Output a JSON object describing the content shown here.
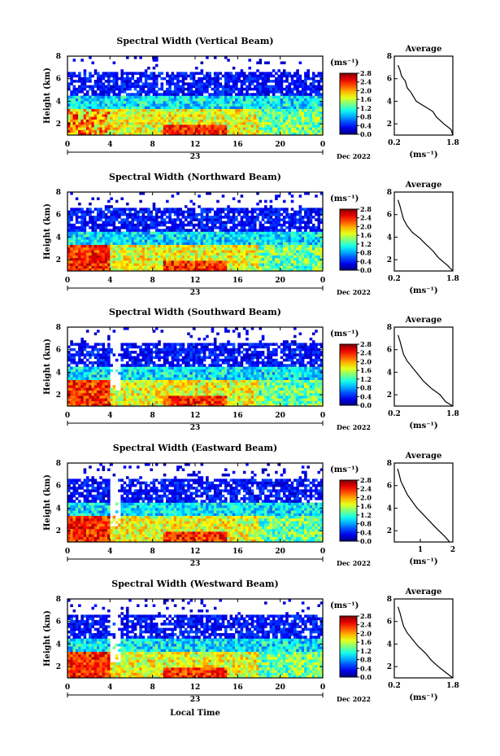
{
  "x_axis_title": "Local Time",
  "chart_data": [
    {
      "type": "heatmap",
      "title": "Spectral Width (Vertical Beam)",
      "ylabel": "Height (km)",
      "x_ticks": [
        "0",
        "4",
        "8",
        "12",
        "16",
        "20",
        "0"
      ],
      "y_ticks": [
        "2",
        "4",
        "6",
        "8"
      ],
      "day_label": "23",
      "date_label": "Dec 2022",
      "xlim": [
        0,
        24
      ],
      "ylim": [
        1,
        8
      ],
      "colorbar": {
        "unit": "(ms⁻¹)",
        "ticks": [
          "2.8",
          "2.4",
          "2.0",
          "1.6",
          "1.2",
          "0.8",
          "0.4",
          "0.0"
        ],
        "range": [
          0,
          2.8
        ]
      },
      "average": {
        "title": "Average",
        "xlabel": "(ms⁻¹)",
        "x_ticks": [
          "0.2",
          "1.8"
        ],
        "xlim": [
          0.2,
          1.8
        ],
        "y_ticks": [
          "2",
          "4",
          "6",
          "8"
        ],
        "profile": [
          [
            1.8,
            1
          ],
          [
            1.75,
            1.5
          ],
          [
            1.55,
            2
          ],
          [
            1.35,
            2.6
          ],
          [
            1.25,
            3.1
          ],
          [
            1.0,
            3.6
          ],
          [
            0.8,
            4.0
          ],
          [
            0.65,
            4.8
          ],
          [
            0.55,
            5.2
          ],
          [
            0.5,
            5.8
          ],
          [
            0.4,
            6.2
          ],
          [
            0.35,
            6.8
          ],
          [
            0.3,
            7.2
          ]
        ]
      }
    },
    {
      "type": "heatmap",
      "title": "Spectral Width (Northward Beam)",
      "ylabel": "Height (km)",
      "x_ticks": [
        "0",
        "4",
        "8",
        "12",
        "16",
        "20",
        "0"
      ],
      "y_ticks": [
        "2",
        "4",
        "6",
        "8"
      ],
      "day_label": "23",
      "date_label": "Dec 2022",
      "xlim": [
        0,
        24
      ],
      "ylim": [
        1,
        8
      ],
      "colorbar": {
        "unit": "(ms⁻¹)",
        "ticks": [
          "2.8",
          "2.4",
          "2.0",
          "1.6",
          "1.2",
          "0.8",
          "0.4",
          "0.0"
        ],
        "range": [
          0,
          2.8
        ]
      },
      "average": {
        "title": "Average",
        "xlabel": "(ms⁻¹)",
        "x_ticks": [
          "0.2",
          "1.8"
        ],
        "xlim": [
          0.2,
          1.8
        ],
        "y_ticks": [
          "2",
          "4",
          "6",
          "8"
        ],
        "profile": [
          [
            1.8,
            1
          ],
          [
            1.65,
            1.5
          ],
          [
            1.4,
            2.2
          ],
          [
            1.25,
            2.8
          ],
          [
            1.05,
            3.4
          ],
          [
            0.9,
            3.9
          ],
          [
            0.7,
            4.4
          ],
          [
            0.55,
            5.0
          ],
          [
            0.45,
            5.6
          ],
          [
            0.4,
            6.2
          ],
          [
            0.35,
            6.8
          ],
          [
            0.3,
            7.3
          ]
        ]
      }
    },
    {
      "type": "heatmap",
      "title": "Spectral Width (Southward Beam)",
      "ylabel": "Height (km)",
      "x_ticks": [
        "0",
        "4",
        "8",
        "12",
        "16",
        "20",
        "0"
      ],
      "y_ticks": [
        "2",
        "4",
        "6",
        "8"
      ],
      "day_label": "23",
      "date_label": "Dec 2022",
      "xlim": [
        0,
        24
      ],
      "ylim": [
        1,
        8
      ],
      "colorbar": {
        "unit": "(ms⁻¹)",
        "ticks": [
          "2.8",
          "2.4",
          "2.0",
          "1.6",
          "1.2",
          "0.8",
          "0.4",
          "0.0"
        ],
        "range": [
          0,
          2.8
        ]
      },
      "average": {
        "title": "Average",
        "xlabel": "(ms⁻¹)",
        "x_ticks": [
          "0.2",
          "1.8"
        ],
        "xlim": [
          0.2,
          1.8
        ],
        "y_ticks": [
          "2",
          "4",
          "6",
          "8"
        ],
        "profile": [
          [
            1.8,
            1
          ],
          [
            1.6,
            1.4
          ],
          [
            1.45,
            2.0
          ],
          [
            1.2,
            2.6
          ],
          [
            1.0,
            3.2
          ],
          [
            0.85,
            3.8
          ],
          [
            0.7,
            4.4
          ],
          [
            0.55,
            5.0
          ],
          [
            0.45,
            5.6
          ],
          [
            0.4,
            6.2
          ],
          [
            0.35,
            6.8
          ],
          [
            0.3,
            7.3
          ]
        ]
      }
    },
    {
      "type": "heatmap",
      "title": "Spectral Width (Eastward Beam)",
      "ylabel": "Height (km)",
      "x_ticks": [
        "0",
        "4",
        "8",
        "12",
        "16",
        "20",
        "0"
      ],
      "y_ticks": [
        "2",
        "4",
        "6",
        "8"
      ],
      "day_label": "23",
      "date_label": "Dec 2022",
      "xlim": [
        0,
        24
      ],
      "ylim": [
        1,
        8
      ],
      "colorbar": {
        "unit": "(ms⁻¹)",
        "ticks": [
          "2.8",
          "2.4",
          "2.0",
          "1.6",
          "1.2",
          "0.8",
          "0.4",
          "0.0"
        ],
        "range": [
          0,
          2.8
        ]
      },
      "average": {
        "title": "Average",
        "xlabel": "(ms⁻¹)",
        "x_ticks": [
          "1",
          "2"
        ],
        "xlim": [
          0.2,
          2.0
        ],
        "y_ticks": [
          "2",
          "4",
          "6",
          "8"
        ],
        "profile": [
          [
            1.9,
            1
          ],
          [
            1.75,
            1.5
          ],
          [
            1.5,
            2.2
          ],
          [
            1.3,
            2.8
          ],
          [
            1.1,
            3.4
          ],
          [
            0.9,
            4.0
          ],
          [
            0.75,
            4.6
          ],
          [
            0.6,
            5.2
          ],
          [
            0.5,
            5.8
          ],
          [
            0.4,
            6.4
          ],
          [
            0.35,
            7.0
          ],
          [
            0.3,
            7.5
          ]
        ]
      }
    },
    {
      "type": "heatmap",
      "title": "Spectral Width (Westward Beam)",
      "ylabel": "Height (km)",
      "x_ticks": [
        "0",
        "4",
        "8",
        "12",
        "16",
        "20",
        "0"
      ],
      "y_ticks": [
        "2",
        "4",
        "6",
        "8"
      ],
      "day_label": "23",
      "date_label": "Dec 2022",
      "xlim": [
        0,
        24
      ],
      "ylim": [
        1,
        8
      ],
      "colorbar": {
        "unit": "(ms⁻¹)",
        "ticks": [
          "2.8",
          "2.4",
          "2.0",
          "1.6",
          "1.2",
          "0.8",
          "0.4",
          "0.0"
        ],
        "range": [
          0,
          2.8
        ]
      },
      "average": {
        "title": "Average",
        "xlabel": "(ms⁻¹)",
        "x_ticks": [
          "0.2",
          "1.8"
        ],
        "xlim": [
          0.2,
          1.8
        ],
        "y_ticks": [
          "2",
          "4",
          "6",
          "8"
        ],
        "profile": [
          [
            1.8,
            1
          ],
          [
            1.6,
            1.5
          ],
          [
            1.4,
            2.0
          ],
          [
            1.2,
            2.6
          ],
          [
            1.05,
            3.2
          ],
          [
            0.85,
            3.8
          ],
          [
            0.7,
            4.4
          ],
          [
            0.55,
            5.0
          ],
          [
            0.45,
            5.6
          ],
          [
            0.4,
            6.2
          ],
          [
            0.35,
            6.8
          ],
          [
            0.3,
            7.3
          ]
        ]
      }
    }
  ]
}
